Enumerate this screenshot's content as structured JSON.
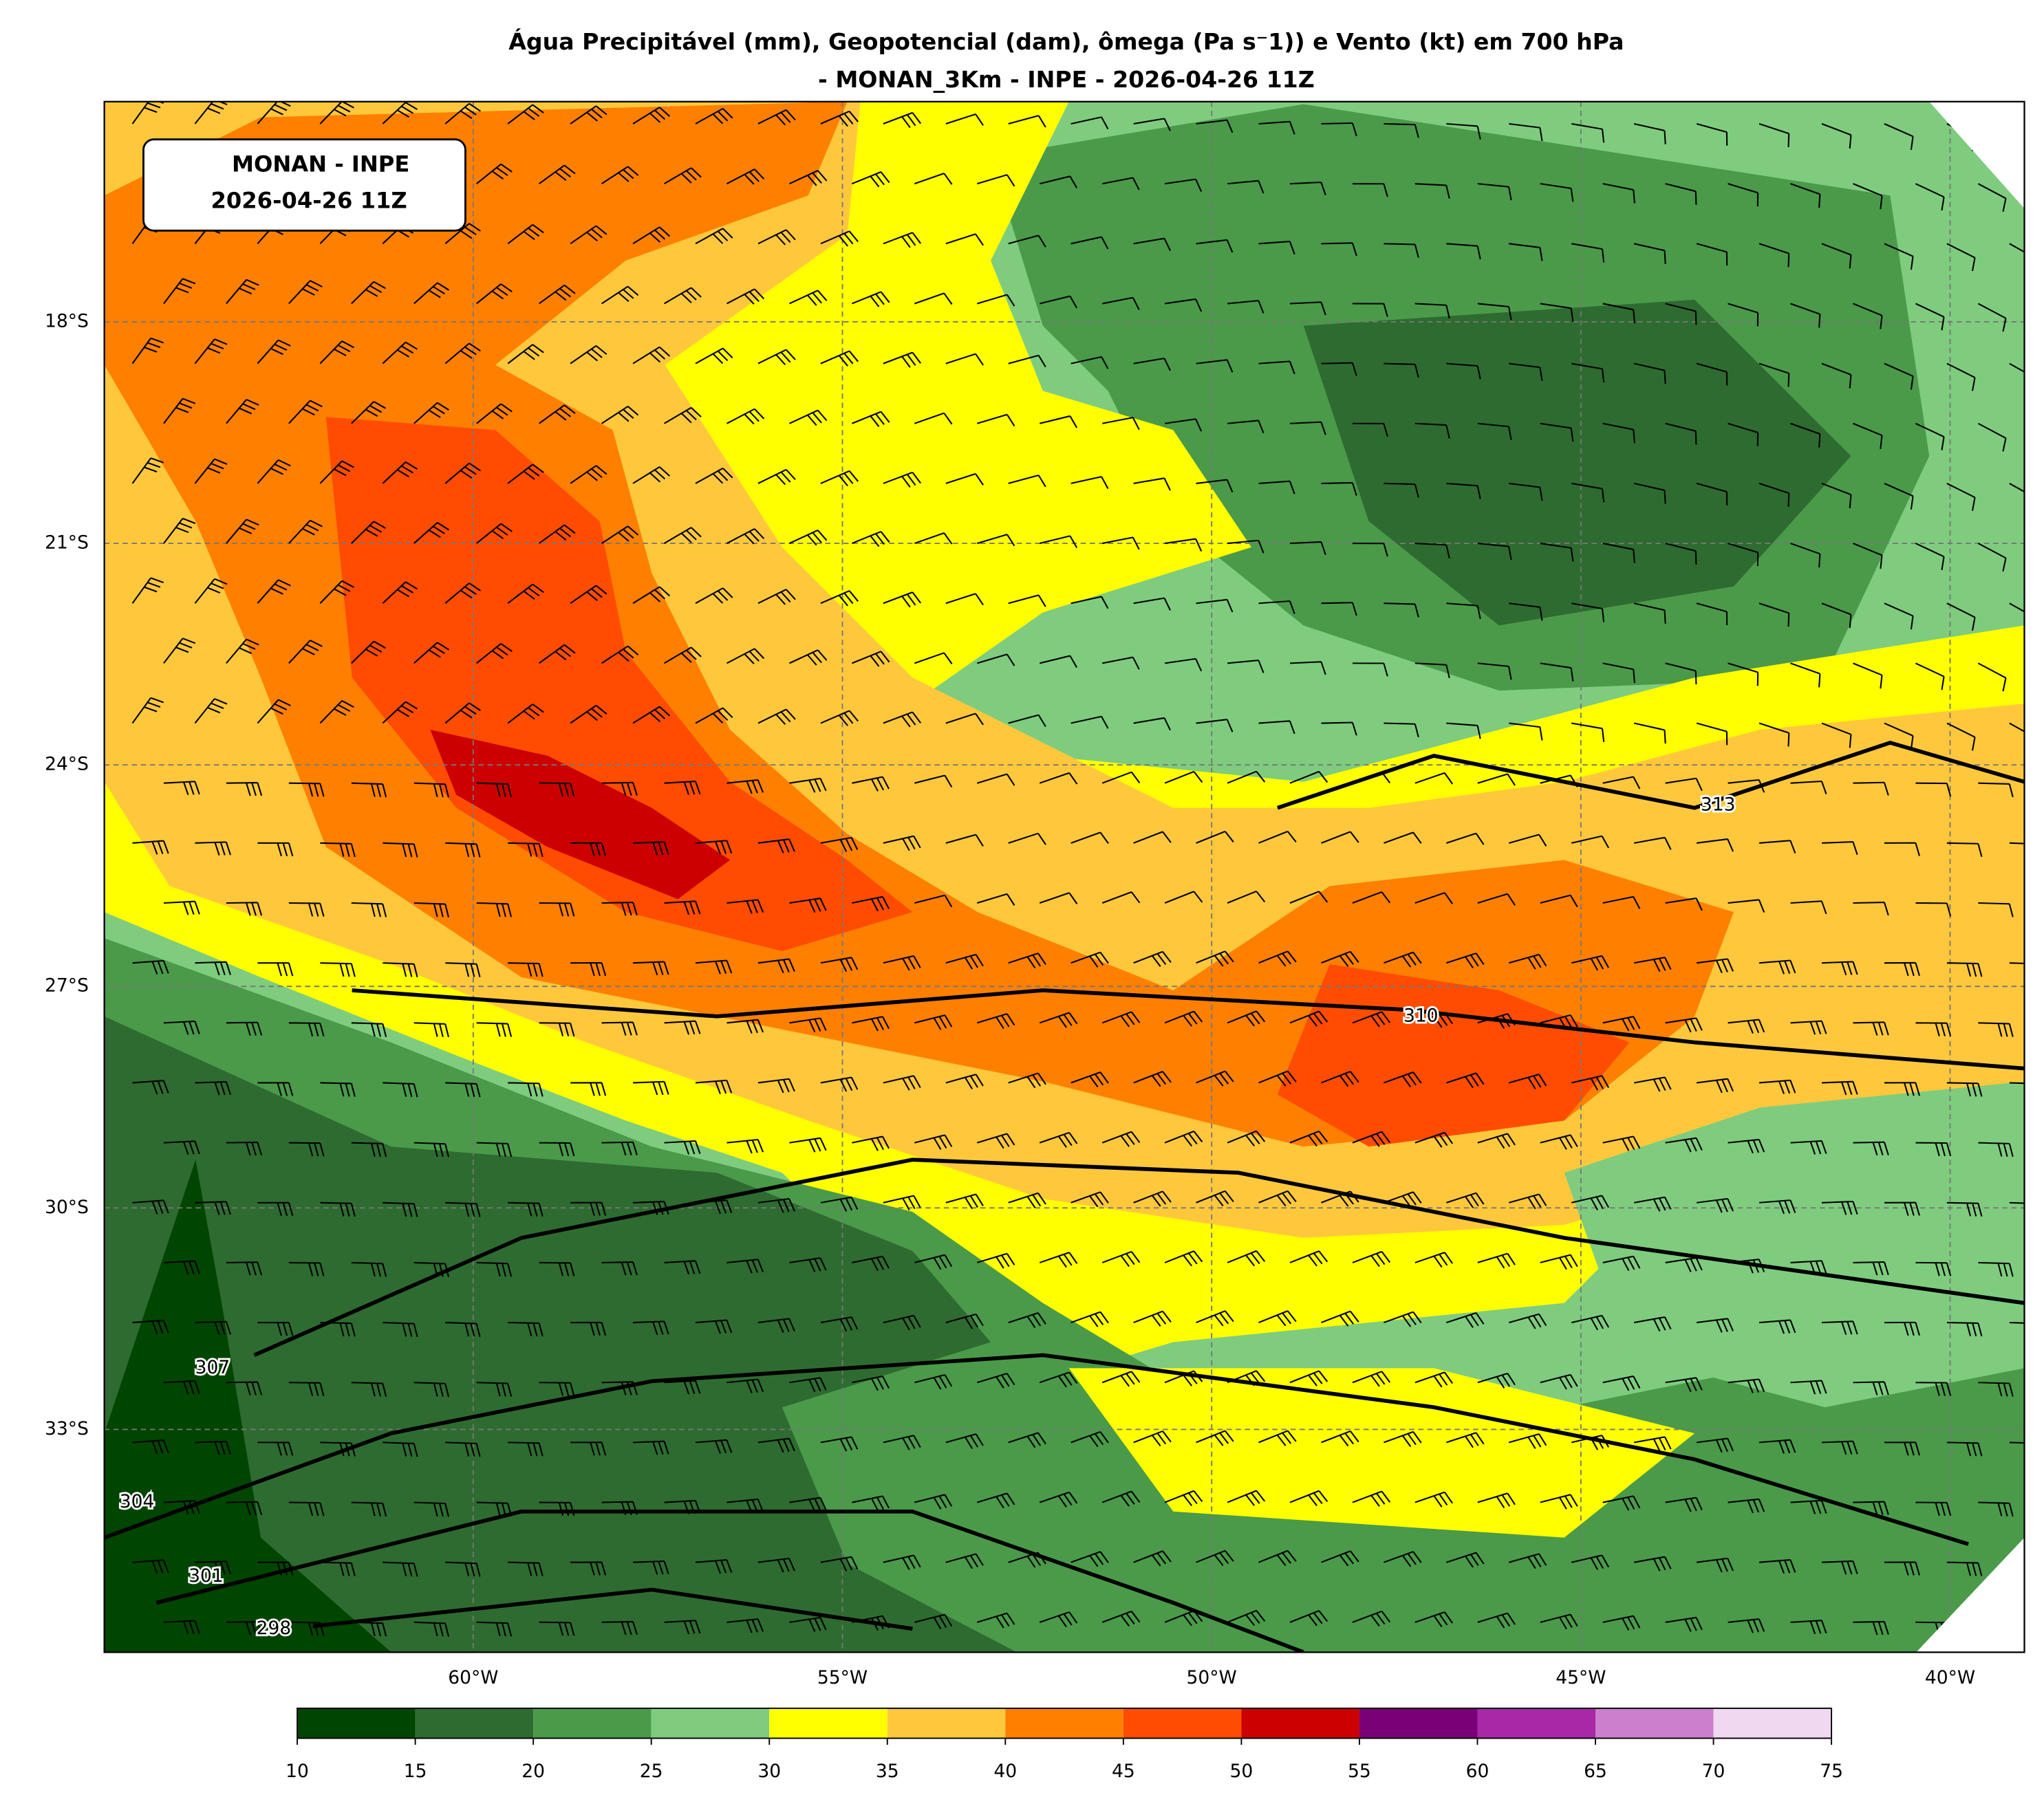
{
  "title": [
    "Água Precipitável (mm), Geopotencial (dam), ômega (Pa s⁻1)) e Vento (kt) em 700 hPa",
    "- MONAN_3Km - INPE - 2026-04-26 11Z"
  ],
  "info_box": [
    "MONAN - INPE",
    "2026-04-26 11Z"
  ],
  "lat_labels": [
    "18°S",
    "21°S",
    "24°S",
    "27°S",
    "30°S",
    "33°S"
  ],
  "lon_labels": [
    "60°W",
    "55°W",
    "50°W",
    "45°W",
    "40°W"
  ],
  "contour_labels": [
    "313",
    "310",
    "307",
    "304",
    "301",
    "298"
  ],
  "colorbar": {
    "ticks": [
      10,
      15,
      20,
      25,
      30,
      35,
      40,
      45,
      50,
      55,
      60,
      65,
      70,
      75
    ],
    "colors": [
      "#004500",
      "#2e6b30",
      "#4a9a4a",
      "#7fcc7f",
      "#ffff00",
      "#ffc83c",
      "#ff8000",
      "#ff4c00",
      "#cc0000",
      "#7a0078",
      "#a828a8",
      "#cc7fcc",
      "#f0d8f0"
    ]
  }
}
